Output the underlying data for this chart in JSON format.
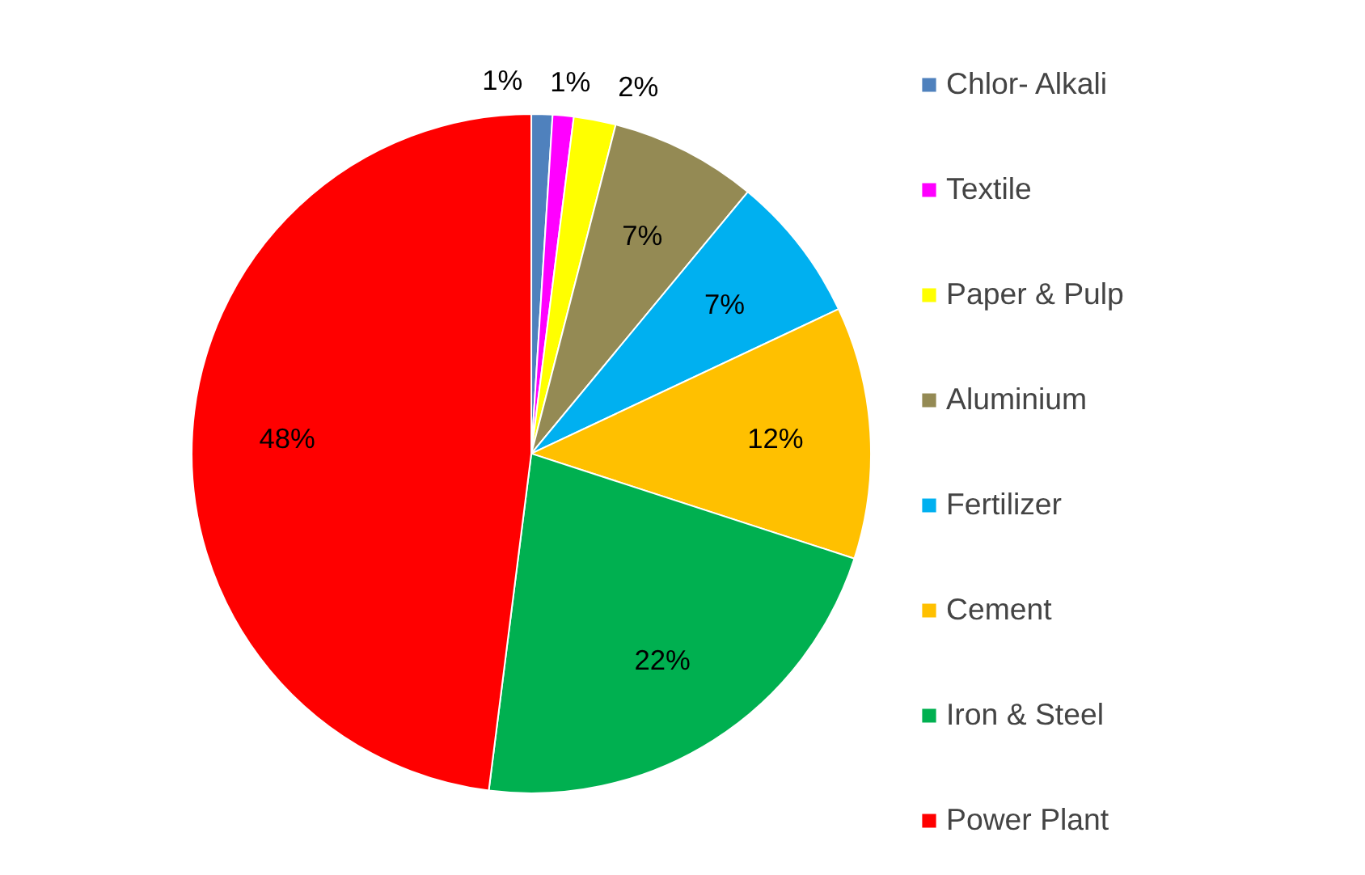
{
  "chart_data": {
    "type": "pie",
    "categories": [
      "Chlor- Alkali",
      "Textile",
      "Paper & Pulp",
      "Aluminium",
      "Fertilizer",
      "Cement",
      "Iron & Steel",
      "Power Plant"
    ],
    "values": [
      1,
      1,
      2,
      7,
      7,
      12,
      22,
      48
    ],
    "colors": [
      "#4f81bd",
      "#ff00ff",
      "#ffff00",
      "#948a54",
      "#00b0f0",
      "#ffc000",
      "#00b050",
      "#ff0000"
    ],
    "value_labels": [
      "1%",
      "1%",
      "2%",
      "7%",
      "7%",
      "12%",
      "22%",
      "48%"
    ],
    "legend": "right"
  }
}
